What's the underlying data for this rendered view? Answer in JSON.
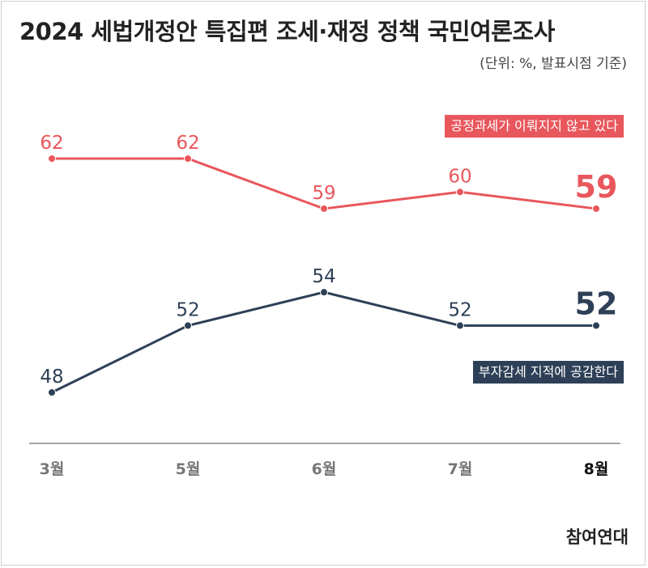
{
  "header": {
    "title": "2024 세법개정안 특집편 조세·재정 정책 국민여론조사",
    "subtitle": "(단위: %, 발표시점 기준)"
  },
  "source": "참여연대",
  "colors": {
    "red": "#e8575c",
    "navy": "#2e4057",
    "axis": "#888888",
    "tick": "#777777"
  },
  "chart_data": {
    "type": "line",
    "categories": [
      "3월",
      "5월",
      "6월",
      "7월",
      "8월"
    ],
    "highlight_category": "8월",
    "ylim": [
      40,
      70
    ],
    "grid": false,
    "series": [
      {
        "name": "공정과세가 이뤄지지 않고 있다",
        "values": [
          62,
          62,
          59,
          60,
          59
        ],
        "color": "#e8575c"
      },
      {
        "name": "부자감세 지적에 공감한다",
        "values": [
          48,
          52,
          54,
          52,
          52
        ],
        "color": "#2e4057"
      }
    ]
  }
}
